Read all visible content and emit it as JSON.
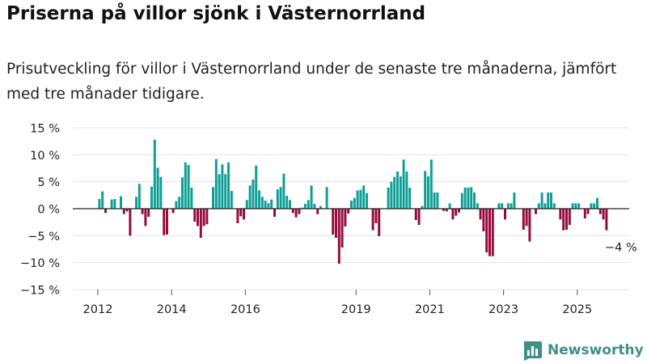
{
  "header": {
    "title": "Priserna på villor sjönk i Västernorrland",
    "subtitle": "Prisutveckling för villor i Västernorrland under de senaste tre månaderna, jämfört med tre månader tidigare."
  },
  "colors": {
    "positive": "#0e9e96",
    "negative": "#960a3c",
    "grid": "#e3e3e3",
    "zero": "#222222",
    "brand": "#3f8f86"
  },
  "brand": {
    "name": "Newsworthy",
    "logo_icon": "bar-chart-logo-icon"
  },
  "chart_data": {
    "type": "bar",
    "title": "Priserna på villor sjönk i Västernorrland",
    "ylabel": "",
    "xlabel": "",
    "ylim": [
      -15,
      15
    ],
    "yticks": [
      15,
      10,
      5,
      0,
      -5,
      -10,
      -15
    ],
    "ytick_labels": [
      "15 %",
      "10 %",
      "5 %",
      "0 %",
      "−5 %",
      "−10 %",
      "−15 %"
    ],
    "xlim": [
      2011.75,
      2026.75
    ],
    "xticks": [
      2012,
      2014,
      2016,
      2019,
      2021,
      2023,
      2025
    ],
    "xtick_labels": [
      "2012",
      "2014",
      "2016",
      "2019",
      "2021",
      "2023",
      "2025"
    ],
    "last_label": "−4 %",
    "series": [
      {
        "name": "Prisutveckling",
        "start": 2012.0,
        "step_months": 1,
        "values": [
          1.8,
          3.2,
          -0.8,
          0,
          1.7,
          1.8,
          0,
          2.3,
          -1.0,
          -0.5,
          -5.0,
          0,
          2.2,
          4.6,
          -1.0,
          -3.2,
          -1.5,
          4.1,
          12.8,
          7.6,
          5.9,
          -4.9,
          -4.8,
          0,
          -0.8,
          1.4,
          2.2,
          5.8,
          8.6,
          8.1,
          3.9,
          -2.4,
          -3.2,
          -5.4,
          -3.2,
          -2.9,
          0,
          4.0,
          9.2,
          6.4,
          8.2,
          6.4,
          8.6,
          3.3,
          0,
          -2.7,
          -1.4,
          -2.0,
          1.6,
          4.3,
          5.4,
          8.0,
          3.4,
          2.2,
          1.5,
          1.0,
          1.7,
          -1.5,
          3.6,
          4.0,
          6.5,
          2.4,
          1.6,
          -0.8,
          -1.6,
          -1.0,
          0.2,
          0.9,
          1.6,
          4.3,
          0.9,
          -1.0,
          0.5,
          0,
          4.0,
          0,
          -4.8,
          -5.4,
          -10.2,
          -7.2,
          -3.3,
          -0.9,
          1.5,
          2.0,
          3.4,
          3.5,
          4.3,
          2.9,
          0,
          -4.0,
          -2.7,
          -5.1,
          0,
          0,
          3.9,
          5.0,
          5.9,
          6.9,
          6.0,
          9.1,
          6.9,
          3.9,
          0,
          -2.1,
          -3.0,
          0.5,
          7.0,
          6.0,
          9.1,
          3.0,
          3.0,
          0,
          -0.4,
          -0.5,
          1.0,
          -2.0,
          -1.3,
          -0.7,
          2.9,
          3.9,
          3.9,
          4.0,
          3.0,
          1.0,
          -2.0,
          -4.2,
          -8.1,
          -8.8,
          -8.8,
          0,
          1.0,
          1.0,
          -2.0,
          1.0,
          1.0,
          3.0,
          0,
          0,
          -3.9,
          -3.2,
          -6.1,
          0,
          -1.0,
          1.0,
          3.0,
          1.0,
          3.0,
          3.0,
          1.0,
          0,
          -2.0,
          -4.0,
          -3.9,
          -3.0,
          1.0,
          1.0,
          1.0,
          0,
          -1.8,
          -1.0,
          1.0,
          1.0,
          2.0,
          -1.0,
          -2.0,
          -4.0
        ]
      }
    ]
  }
}
